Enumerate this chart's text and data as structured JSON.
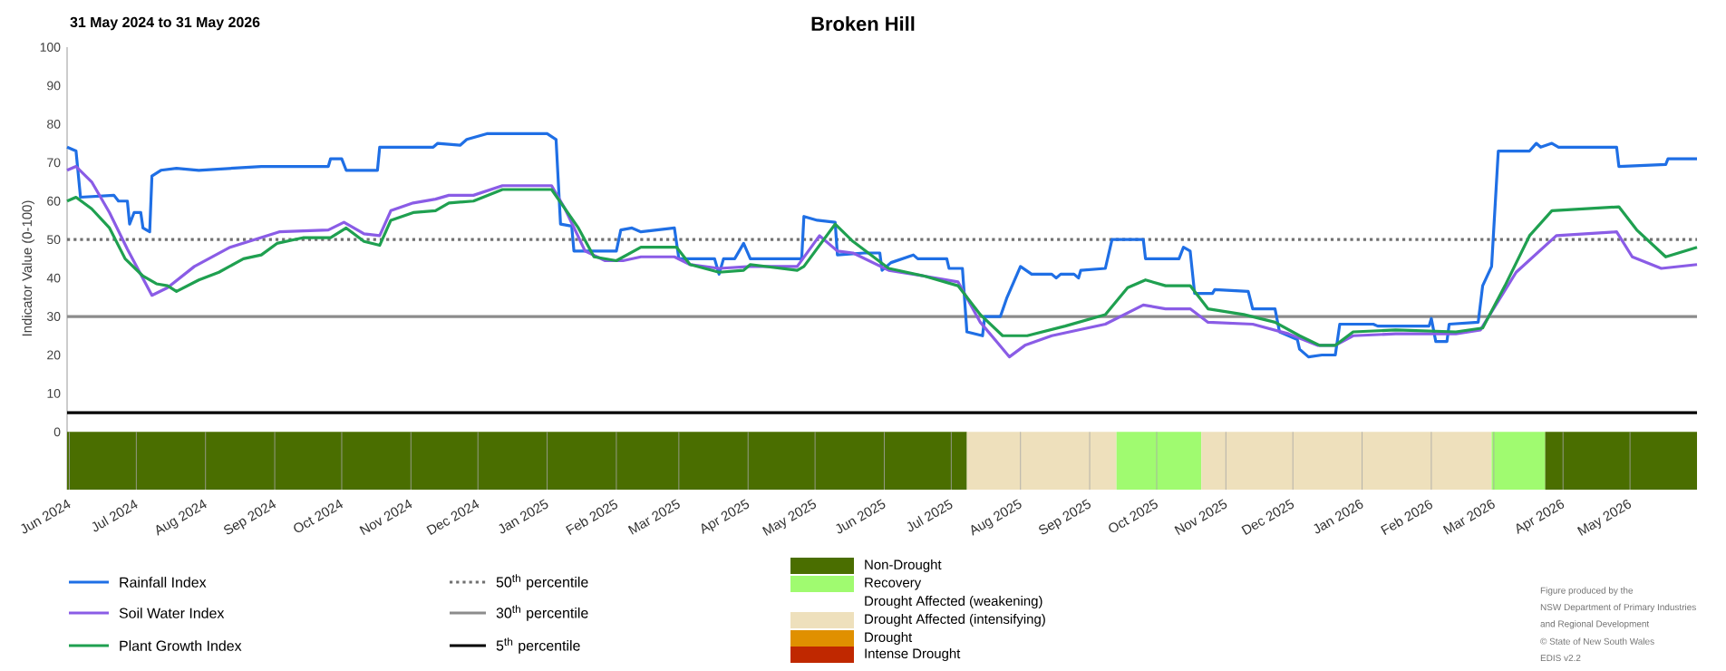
{
  "chart_data": [
    {
      "type": "line",
      "title": "Broken Hill",
      "subtitle": "31 May 2024 to 31 May 2026",
      "ylabel": "Indicator Value (0-100)",
      "xlim": [
        "2024-05-31",
        "2026-05-31"
      ],
      "ylim": [
        -15,
        100
      ],
      "yticks": [
        0,
        10,
        20,
        30,
        40,
        50,
        60,
        70,
        80,
        90,
        100
      ],
      "xticks": [
        {
          "value": "2024-06-01",
          "label": "Jun 2024"
        },
        {
          "value": "2024-07-01",
          "label": "Jul 2024"
        },
        {
          "value": "2024-08-01",
          "label": "Aug 2024"
        },
        {
          "value": "2024-09-01",
          "label": "Sep 2024"
        },
        {
          "value": "2024-10-01",
          "label": "Oct 2024"
        },
        {
          "value": "2024-11-01",
          "label": "Nov 2024"
        },
        {
          "value": "2024-12-01",
          "label": "Dec 2024"
        },
        {
          "value": "2025-01-01",
          "label": "Jan 2025"
        },
        {
          "value": "2025-02-01",
          "label": "Feb 2025"
        },
        {
          "value": "2025-03-01",
          "label": "Mar 2025"
        },
        {
          "value": "2025-04-01",
          "label": "Apr 2025"
        },
        {
          "value": "2025-05-01",
          "label": "May 2025"
        },
        {
          "value": "2025-06-01",
          "label": "Jun 2025"
        },
        {
          "value": "2025-07-01",
          "label": "Jul 2025"
        },
        {
          "value": "2025-08-01",
          "label": "Aug 2025"
        },
        {
          "value": "2025-09-01",
          "label": "Sep 2025"
        },
        {
          "value": "2025-10-01",
          "label": "Oct 2025"
        },
        {
          "value": "2025-11-01",
          "label": "Nov 2025"
        },
        {
          "value": "2025-12-01",
          "label": "Dec 2025"
        },
        {
          "value": "2026-01-01",
          "label": "Jan 2026"
        },
        {
          "value": "2026-02-01",
          "label": "Feb 2026"
        },
        {
          "value": "2026-03-01",
          "label": "Mar 2026"
        },
        {
          "value": "2026-04-01",
          "label": "Apr 2026"
        },
        {
          "value": "2026-05-01",
          "label": "May 2026"
        }
      ],
      "legend": "bottom",
      "series": [
        {
          "name": "Rainfall Index",
          "color": "#1f6fe5",
          "x": [
            "2024-05-31",
            "2024-06-04",
            "2024-06-06",
            "2024-06-21",
            "2024-06-23",
            "2024-06-27",
            "2024-06-28",
            "2024-06-30",
            "2024-07-03",
            "2024-07-04",
            "2024-07-07",
            "2024-07-08",
            "2024-07-12",
            "2024-07-19",
            "2024-07-29",
            "2024-08-26",
            "2024-09-25",
            "2024-09-26",
            "2024-10-01",
            "2024-10-03",
            "2024-10-17",
            "2024-10-18",
            "2024-11-11",
            "2024-11-13",
            "2024-11-23",
            "2024-11-26",
            "2024-12-05",
            "2025-01-01",
            "2025-01-05",
            "2025-01-07",
            "2025-01-12",
            "2025-01-13",
            "2025-02-01",
            "2025-02-03",
            "2025-02-08",
            "2025-02-12",
            "2025-02-27",
            "2025-03-01",
            "2025-03-17",
            "2025-03-19",
            "2025-03-21",
            "2025-03-26",
            "2025-03-30",
            "2025-04-02",
            "2025-04-25",
            "2025-04-26",
            "2025-05-02",
            "2025-05-10",
            "2025-05-11",
            "2025-05-23",
            "2025-05-30",
            "2025-05-31",
            "2025-06-04",
            "2025-06-14",
            "2025-06-16",
            "2025-06-29",
            "2025-06-30",
            "2025-07-06",
            "2025-07-08",
            "2025-07-15",
            "2025-07-16",
            "2025-07-23",
            "2025-07-26",
            "2025-07-29",
            "2025-08-01",
            "2025-08-06",
            "2025-08-15",
            "2025-08-17",
            "2025-08-19",
            "2025-08-25",
            "2025-08-27",
            "2025-08-28",
            "2025-09-08",
            "2025-09-11",
            "2025-09-25",
            "2025-09-26",
            "2025-10-11",
            "2025-10-13",
            "2025-10-16",
            "2025-10-18",
            "2025-10-26",
            "2025-10-27",
            "2025-11-11",
            "2025-11-13",
            "2025-11-23",
            "2025-11-25",
            "2025-12-03",
            "2025-12-04",
            "2025-12-08",
            "2025-12-14",
            "2025-12-20",
            "2025-12-22",
            "2026-01-06",
            "2026-01-08",
            "2026-01-31",
            "2026-02-01",
            "2026-02-03",
            "2026-02-08",
            "2026-02-09",
            "2026-02-22",
            "2026-02-24",
            "2026-02-28",
            "2026-03-03",
            "2026-03-17",
            "2026-03-20",
            "2026-03-22",
            "2026-03-27",
            "2026-03-30",
            "2026-04-25",
            "2026-04-26",
            "2026-05-17",
            "2026-05-18",
            "2026-05-31"
          ],
          "values": [
            74,
            73,
            61,
            61.5,
            60,
            60,
            54,
            57,
            57,
            53,
            52,
            66.5,
            68,
            68.5,
            68,
            69,
            69,
            71,
            71,
            68,
            68,
            74,
            74,
            75,
            74.5,
            76,
            77.5,
            77.5,
            76,
            54,
            53.5,
            47,
            47,
            52.5,
            53,
            52,
            53,
            45,
            45,
            41,
            45,
            45,
            49,
            45,
            45,
            56,
            55,
            54.5,
            46,
            46.5,
            46.5,
            42,
            44,
            46,
            45,
            45,
            42.5,
            42.5,
            26,
            25,
            30,
            30,
            35,
            39,
            43,
            41,
            41,
            40,
            41,
            41,
            40,
            42,
            42.5,
            50,
            50,
            45,
            45,
            48,
            47,
            36,
            36,
            37,
            36.5,
            32,
            32,
            26,
            24,
            21.5,
            19.5,
            20,
            20,
            28,
            28,
            27.5,
            27.5,
            29.5,
            23.5,
            23.5,
            28,
            28.5,
            38,
            43,
            73,
            73,
            75,
            74,
            75,
            74,
            74,
            69,
            69.5,
            71,
            71
          ]
        },
        {
          "name": "Soil Water Index",
          "color": "#8a5ce6",
          "x": [
            "2024-05-31",
            "2024-06-04",
            "2024-06-11",
            "2024-06-19",
            "2024-06-27",
            "2024-07-08",
            "2024-07-15",
            "2024-07-27",
            "2024-08-12",
            "2024-09-03",
            "2024-09-25",
            "2024-10-02",
            "2024-10-11",
            "2024-10-18",
            "2024-10-23",
            "2024-11-02",
            "2024-11-12",
            "2024-11-18",
            "2024-11-29",
            "2024-12-12",
            "2025-01-03",
            "2025-01-09",
            "2025-01-18",
            "2025-01-27",
            "2025-02-04",
            "2025-02-12",
            "2025-02-27",
            "2025-03-06",
            "2025-03-19",
            "2025-04-02",
            "2025-04-23",
            "2025-05-03",
            "2025-05-11",
            "2025-05-18",
            "2025-06-03",
            "2025-06-19",
            "2025-07-04",
            "2025-07-14",
            "2025-07-22",
            "2025-07-27",
            "2025-08-03",
            "2025-08-15",
            "2025-09-08",
            "2025-09-25",
            "2025-10-05",
            "2025-10-16",
            "2025-10-24",
            "2025-11-13",
            "2025-11-29",
            "2025-12-12",
            "2025-12-20",
            "2025-12-28",
            "2026-01-16",
            "2026-02-12",
            "2026-02-23",
            "2026-03-11",
            "2026-03-29",
            "2026-04-25",
            "2026-05-02",
            "2026-05-15",
            "2026-05-31"
          ],
          "values": [
            68,
            69,
            65,
            57,
            47.5,
            35.5,
            37.5,
            43,
            48,
            52,
            52.5,
            54.5,
            51.5,
            51,
            57.5,
            59.5,
            60.5,
            61.5,
            61.5,
            64,
            64,
            58,
            47,
            44.5,
            44.5,
            45.5,
            45.5,
            43.5,
            42.5,
            43,
            43,
            51,
            47,
            46.5,
            42,
            40.5,
            39,
            28.5,
            23,
            19.5,
            22.5,
            25,
            28,
            33,
            32,
            32,
            28.5,
            28,
            25.5,
            22.5,
            22.5,
            25,
            25.5,
            25.5,
            26.5,
            41.5,
            51,
            52,
            45.5,
            42.5,
            43.5
          ]
        },
        {
          "name": "Plant Growth Index",
          "color": "#1fa050",
          "x": [
            "2024-05-31",
            "2024-06-04",
            "2024-06-11",
            "2024-06-19",
            "2024-06-26",
            "2024-07-04",
            "2024-07-10",
            "2024-07-15",
            "2024-07-19",
            "2024-07-29",
            "2024-08-07",
            "2024-08-18",
            "2024-08-26",
            "2024-09-02",
            "2024-09-14",
            "2024-09-26",
            "2024-10-03",
            "2024-10-11",
            "2024-10-18",
            "2024-10-23",
            "2024-11-02",
            "2024-11-12",
            "2024-11-18",
            "2024-11-29",
            "2024-12-12",
            "2025-01-03",
            "2025-01-15",
            "2025-01-22",
            "2025-02-01",
            "2025-02-12",
            "2025-02-28",
            "2025-03-06",
            "2025-03-19",
            "2025-03-30",
            "2025-04-02",
            "2025-04-23",
            "2025-04-26",
            "2025-05-10",
            "2025-05-18",
            "2025-06-03",
            "2025-06-19",
            "2025-07-04",
            "2025-07-14",
            "2025-07-24",
            "2025-08-04",
            "2025-08-21",
            "2025-09-08",
            "2025-09-18",
            "2025-09-26",
            "2025-10-05",
            "2025-10-16",
            "2025-10-24",
            "2025-11-09",
            "2025-11-23",
            "2025-12-04",
            "2025-12-13",
            "2025-12-20",
            "2025-12-28",
            "2026-01-16",
            "2026-02-12",
            "2026-02-24",
            "2026-03-06",
            "2026-03-17",
            "2026-03-27",
            "2026-04-26",
            "2026-05-04",
            "2026-05-17",
            "2026-05-31"
          ],
          "values": [
            60,
            61,
            58,
            53,
            45,
            40.5,
            38.5,
            38,
            36.5,
            39.5,
            41.5,
            45,
            46,
            49,
            50.5,
            50.5,
            53,
            49.5,
            48.5,
            55,
            57,
            57.5,
            59.5,
            60,
            63,
            63,
            53,
            45.5,
            44.5,
            48,
            48,
            43.5,
            41.5,
            42,
            43.5,
            42,
            43,
            54,
            49.5,
            42.5,
            40.5,
            38,
            30.5,
            25,
            25,
            27.5,
            30.5,
            37.5,
            39.5,
            38,
            38,
            32,
            30.5,
            28.5,
            25,
            22.5,
            22.5,
            26,
            26.5,
            26,
            27,
            38,
            51,
            57.5,
            58.5,
            52.5,
            45.5,
            48
          ]
        }
      ],
      "ref_lines": [
        {
          "axis": "y",
          "value": 50,
          "label": "50$^{th}$ percentile",
          "color": "#707070",
          "line_style": "dotted"
        },
        {
          "axis": "y",
          "value": 30,
          "label": "30$^{th}$ percentile",
          "color": "#8c8c8c",
          "line_style": "solid"
        },
        {
          "axis": "y",
          "value": 5,
          "label": "5$^{th}$ percentile",
          "color": "#000000",
          "line_style": "solid"
        }
      ],
      "bands": [
        {
          "axis": "x",
          "from": "2024-05-31",
          "to": "2025-07-08",
          "color": "#4a6e00"
        },
        {
          "axis": "x",
          "from": "2025-07-08",
          "to": "2025-09-13",
          "color": "#eee0bc"
        },
        {
          "axis": "x",
          "from": "2025-09-13",
          "to": "2025-10-21",
          "color": "#a0fb70"
        },
        {
          "axis": "x",
          "from": "2025-10-21",
          "to": "2026-02-28",
          "color": "#eee0bc"
        },
        {
          "axis": "x",
          "from": "2026-02-28",
          "to": "2026-03-24",
          "color": "#a0fb70"
        },
        {
          "axis": "x",
          "from": "2026-03-24",
          "to": "2026-05-31",
          "color": "#4a6e00"
        }
      ],
      "annotations": [
        "Figure produced by the",
        "NSW Department of Primary Industries",
        "and Regional Development",
        "© State of New South Wales",
        "EDIS v2.2"
      ]
    },
    {
      "type": "other",
      "categories": [
        "Non-Drought",
        "Recovery",
        "Drought Affected (weakening)",
        "Drought Affected (intensifying)",
        "Drought",
        "Intense Drought"
      ],
      "colors": [
        "#4a6e00",
        "#a0fb70",
        "#ffffff",
        "#eee0bc",
        "#e09000",
        "#c02800"
      ]
    }
  ]
}
